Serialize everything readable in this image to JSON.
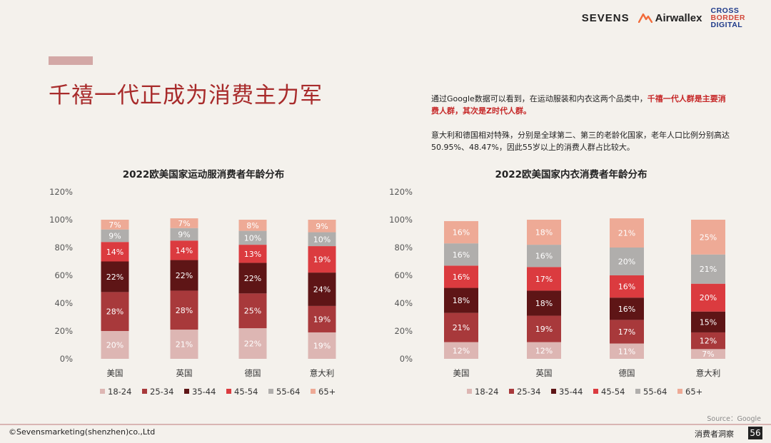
{
  "header": {
    "logo_sevens": "SEVENS",
    "logo_airwallex": "Airwallex",
    "logo_cbd": [
      "CROSS",
      "BORDER",
      "DIGITAL"
    ]
  },
  "page_title": "千禧一代正成为消费主力军",
  "description": {
    "p1_plain": "通过Google数据可以看到，在运动服装和内衣这两个品类中，",
    "p1_highlight": "千禧一代人群是主要消费人群，其次是Z时代人群。",
    "p2": "意大利和德国相对特殊，分别是全球第二、第三的老龄化国家，老年人口比例分别高达50.95%、48.47%，因此55岁以上的消费人群占比较大。"
  },
  "chart_data": [
    {
      "type": "bar",
      "stacked": true,
      "title": "2022欧美国家运动服消费者年龄分布",
      "categories": [
        "美国",
        "英国",
        "德国",
        "意大利"
      ],
      "ylim": [
        0,
        120
      ],
      "yticks": [
        "0%",
        "20%",
        "40%",
        "60%",
        "80%",
        "100%",
        "120%"
      ],
      "legend_position": "bottom",
      "series": [
        {
          "name": "18-24",
          "color": "#ddb6b3",
          "label_color": "#ffffff",
          "values": [
            20,
            21,
            22,
            19
          ]
        },
        {
          "name": "25-34",
          "color": "#a8393b",
          "label_color": "#ffffff",
          "values": [
            28,
            28,
            25,
            19
          ]
        },
        {
          "name": "35-44",
          "color": "#5e1516",
          "label_color": "#ffffff",
          "values": [
            22,
            22,
            22,
            24
          ]
        },
        {
          "name": "45-54",
          "color": "#db3b3f",
          "label_color": "#ffffff",
          "values": [
            14,
            14,
            13,
            19
          ]
        },
        {
          "name": "55-64",
          "color": "#b0aeac",
          "label_color": "#ffffff",
          "values": [
            9,
            9,
            10,
            10
          ]
        },
        {
          "name": "65+",
          "color": "#eeaa96",
          "label_color": "#ffffff",
          "values": [
            7,
            7,
            8,
            9
          ]
        }
      ]
    },
    {
      "type": "bar",
      "stacked": true,
      "title": "2022欧美国家内衣消费者年龄分布",
      "categories": [
        "美国",
        "英国",
        "德国",
        "意大利"
      ],
      "ylim": [
        0,
        120
      ],
      "yticks": [
        "0%",
        "20%",
        "40%",
        "60%",
        "80%",
        "100%",
        "120%"
      ],
      "legend_position": "bottom",
      "series": [
        {
          "name": "18-24",
          "color": "#ddb6b3",
          "label_color": "#ffffff",
          "values": [
            12,
            12,
            11,
            7
          ]
        },
        {
          "name": "25-34",
          "color": "#a8393b",
          "label_color": "#ffffff",
          "values": [
            21,
            19,
            17,
            12
          ]
        },
        {
          "name": "35-44",
          "color": "#5e1516",
          "label_color": "#ffffff",
          "values": [
            18,
            18,
            16,
            15
          ]
        },
        {
          "name": "45-54",
          "color": "#db3b3f",
          "label_color": "#ffffff",
          "values": [
            16,
            17,
            16,
            20
          ]
        },
        {
          "name": "55-64",
          "color": "#b0aeac",
          "label_color": "#ffffff",
          "values": [
            16,
            16,
            20,
            21
          ]
        },
        {
          "name": "65+",
          "color": "#eeaa96",
          "label_color": "#ffffff",
          "values": [
            16,
            18,
            21,
            25
          ]
        }
      ]
    }
  ],
  "footer": {
    "source": "Source：Google",
    "copyright": "©Sevensmarketing(shenzhen)co.,Ltd",
    "section": "消费者洞察",
    "page_number": "56"
  }
}
